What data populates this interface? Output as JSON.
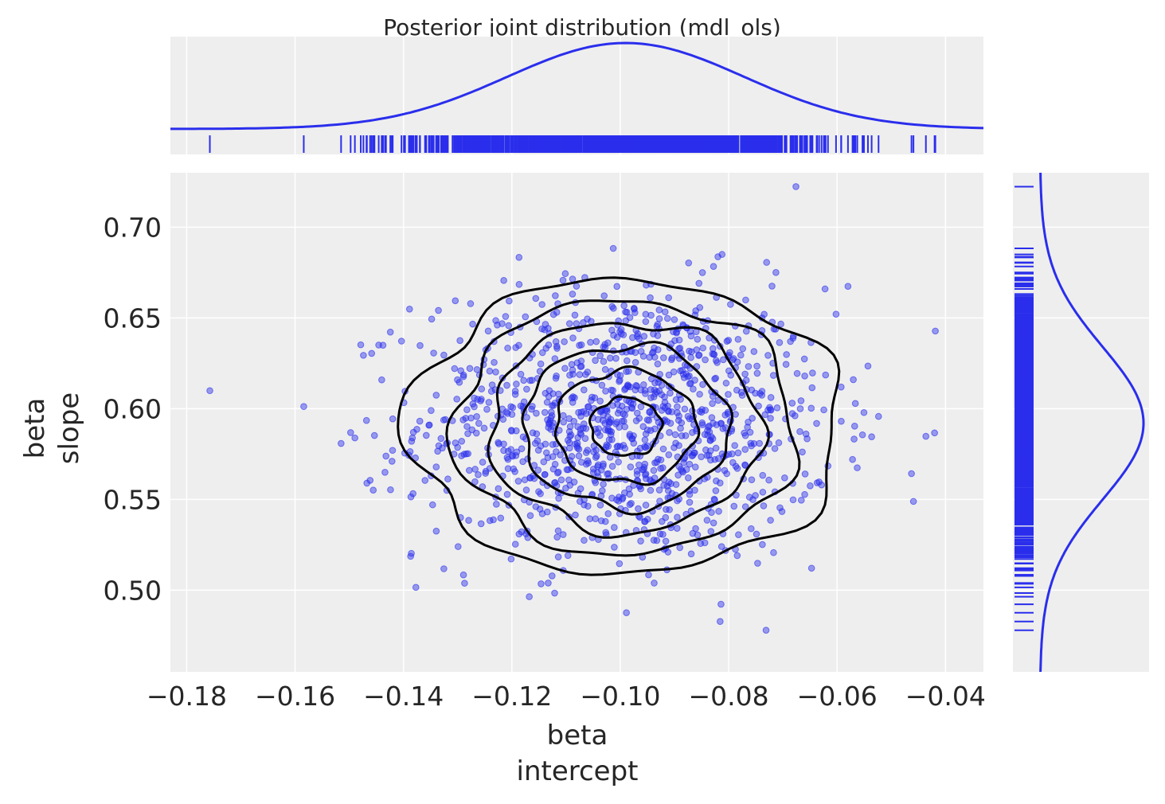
{
  "chart_data": {
    "type": "scatter",
    "title": "Posterior joint distribution (mdl_ols)",
    "xlabel": [
      "beta",
      "intercept"
    ],
    "ylabel": [
      "beta",
      "slope"
    ],
    "xlim": [
      -0.183,
      -0.033
    ],
    "ylim": [
      0.455,
      0.73
    ],
    "x_ticks": [
      -0.18,
      -0.16,
      -0.14,
      -0.12,
      -0.1,
      -0.08,
      -0.06,
      -0.04
    ],
    "x_tick_labels": [
      "−0.18",
      "−0.16",
      "−0.14",
      "−0.12",
      "−0.10",
      "−0.08",
      "−0.06",
      "−0.04"
    ],
    "y_ticks": [
      0.5,
      0.55,
      0.6,
      0.65,
      0.7
    ],
    "y_tick_labels": [
      "0.50",
      "0.55",
      "0.60",
      "0.65",
      "0.70"
    ],
    "intercept_mean": -0.099,
    "intercept_sd": 0.019,
    "slope_mean": 0.592,
    "slope_sd": 0.04,
    "n_points": 1200,
    "contour_levels": [
      {
        "cx": -0.099,
        "cy": 0.59,
        "rx": 0.0065,
        "ry": 0.016
      },
      {
        "cx": -0.099,
        "cy": 0.59,
        "rx": 0.013,
        "ry": 0.031
      },
      {
        "cx": -0.099,
        "cy": 0.59,
        "rx": 0.019,
        "ry": 0.045
      },
      {
        "cx": -0.099,
        "cy": 0.59,
        "rx": 0.025,
        "ry": 0.058
      },
      {
        "cx": -0.099,
        "cy": 0.59,
        "rx": 0.0315,
        "ry": 0.07
      },
      {
        "cx": -0.099,
        "cy": 0.59,
        "rx": 0.04,
        "ry": 0.081
      }
    ],
    "grid": true,
    "colors": {
      "points": "#2a2eec",
      "contours": "#000000",
      "kde": "#2a2eec",
      "background": "#eeeeee",
      "grid": "#ffffff"
    }
  }
}
